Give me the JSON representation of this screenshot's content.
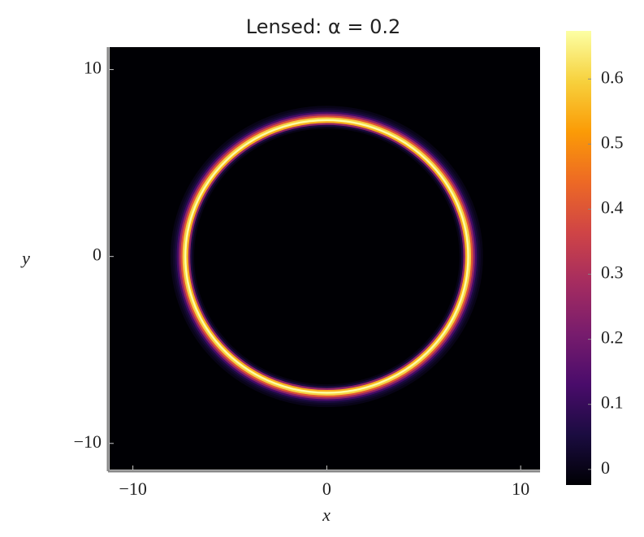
{
  "chart_data": {
    "type": "heatmap",
    "title": "Lensed: α = 0.2",
    "x_label": "x",
    "y_label": "y",
    "xlim": [
      -11.2,
      11.0
    ],
    "ylim": [
      -11.4,
      11.2
    ],
    "xticks": [
      {
        "value": -10,
        "label": "−10"
      },
      0,
      10
    ],
    "yticks": [
      {
        "value": -10,
        "label": "−10"
      },
      0,
      10
    ],
    "center": {
      "x": 0,
      "y": 0
    },
    "radial_profile": {
      "r": [
        6.9,
        7.0,
        7.1,
        7.2,
        7.3,
        7.4,
        7.5,
        7.6,
        7.7,
        7.8,
        7.9,
        8.0
      ],
      "values": [
        0.0,
        0.05,
        0.25,
        0.55,
        0.68,
        0.6,
        0.4,
        0.25,
        0.12,
        0.05,
        0.02,
        0.0
      ]
    },
    "clim": [
      -0.024,
      0.674
    ],
    "cticks": [
      0,
      0.1,
      0.2,
      0.3,
      0.4,
      0.5,
      0.6
    ],
    "colormap": [
      "#000004",
      "#1b0c41",
      "#4a0c6b",
      "#781c6d",
      "#a52c60",
      "#cf4446",
      "#ed6925",
      "#fb9b06",
      "#f7d13d",
      "#fcffa4"
    ]
  }
}
